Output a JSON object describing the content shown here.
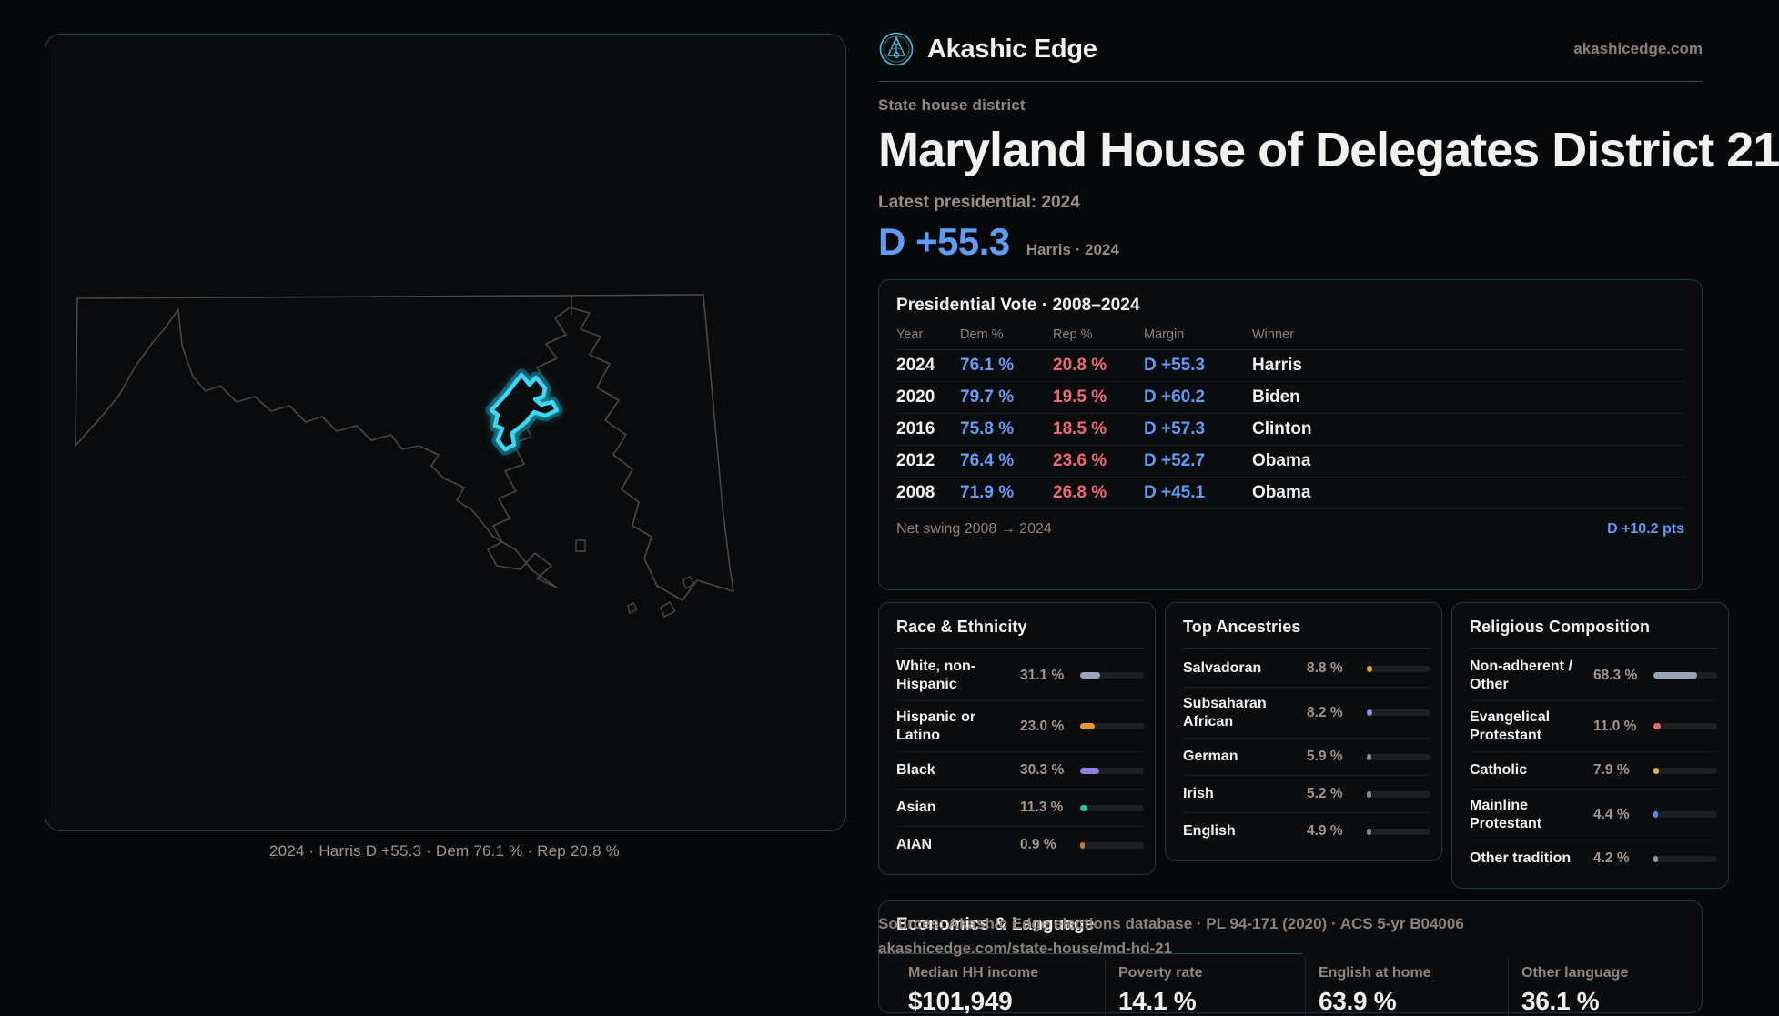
{
  "brand": {
    "name": "Akashic Edge",
    "domain": "akashicedge.com",
    "logo_icon": "akashic-edge-logo"
  },
  "header": {
    "kicker": "State house district",
    "title": "Maryland House of Delegates District 21",
    "latest_label": "Latest presidential: 2024",
    "headline_margin": "D +55.3",
    "headline_context": "Harris · 2024"
  },
  "map": {
    "caption": "2024 · Harris D +55.3 · Dem 76.1 % · Rep 20.8 %",
    "highlight_color": "#3bd8f6"
  },
  "presidential_table": {
    "title": "Presidential Vote · 2008–2024",
    "columns": [
      "Year",
      "Dem %",
      "Rep %",
      "Margin",
      "Winner"
    ],
    "rows": [
      {
        "year": "2024",
        "dem": "76.1 %",
        "rep": "20.8 %",
        "margin": "D +55.3",
        "winner": "Harris"
      },
      {
        "year": "2020",
        "dem": "79.7 %",
        "rep": "19.5 %",
        "margin": "D +60.2",
        "winner": "Biden"
      },
      {
        "year": "2016",
        "dem": "75.8 %",
        "rep": "18.5 %",
        "margin": "D +57.3",
        "winner": "Clinton"
      },
      {
        "year": "2012",
        "dem": "76.4 %",
        "rep": "23.6 %",
        "margin": "D +52.7",
        "winner": "Obama"
      },
      {
        "year": "2008",
        "dem": "71.9 %",
        "rep": "26.8 %",
        "margin": "D +45.1",
        "winner": "Obama"
      }
    ],
    "net_swing_label": "Net swing 2008 → 2024",
    "net_swing_value": "D +10.2 pts"
  },
  "panels": [
    {
      "title": "Race & Ethnicity",
      "rows": [
        {
          "label": "White, non-Hispanic",
          "value": "31.1 %",
          "pct": 31.1,
          "color": "#97a6bd"
        },
        {
          "label": "Hispanic or Latino",
          "value": "23.0 %",
          "pct": 23.0,
          "color": "#e3982e"
        },
        {
          "label": "Black",
          "value": "30.3 %",
          "pct": 30.3,
          "color": "#9181e6"
        },
        {
          "label": "Asian",
          "value": "11.3 %",
          "pct": 11.3,
          "color": "#2fc493"
        },
        {
          "label": "AIAN",
          "value": "0.9 %",
          "pct": 0.9,
          "color": "#c07a35"
        }
      ]
    },
    {
      "title": "Top Ancestries",
      "rows": [
        {
          "label": "Salvadoran",
          "value": "8.8 %",
          "pct": 8.8,
          "color": "#e0a435"
        },
        {
          "label": "Subsaharan African",
          "value": "8.2 %",
          "pct": 8.2,
          "color": "#9087e8"
        },
        {
          "label": "German",
          "value": "5.9 %",
          "pct": 5.9,
          "color": "#7f8da3"
        },
        {
          "label": "Irish",
          "value": "5.2 %",
          "pct": 5.2,
          "color": "#7f8da3"
        },
        {
          "label": "English",
          "value": "4.9 %",
          "pct": 4.9,
          "color": "#7f8da3"
        }
      ]
    },
    {
      "title": "Religious Composition",
      "rows": [
        {
          "label": "Non-adherent / Other",
          "value": "68.3 %",
          "pct": 68.3,
          "color": "#97a3b8"
        },
        {
          "label": "Evangelical Protestant",
          "value": "11.0 %",
          "pct": 11.0,
          "color": "#e06b70"
        },
        {
          "label": "Catholic",
          "value": "7.9 %",
          "pct": 7.9,
          "color": "#e3b23a"
        },
        {
          "label": "Mainline Protestant",
          "value": "4.4 %",
          "pct": 4.4,
          "color": "#4f8df2"
        },
        {
          "label": "Other tradition",
          "value": "4.2 %",
          "pct": 4.2,
          "color": "#9094a0"
        }
      ]
    }
  ],
  "economics": {
    "title": "Economics & Language",
    "stats": [
      {
        "label": "Median HH income",
        "value": "$101,949"
      },
      {
        "label": "Poverty rate",
        "value": "14.1 %"
      },
      {
        "label": "English at home",
        "value": "63.9 %"
      },
      {
        "label": "Other language",
        "value": "36.1 %"
      }
    ]
  },
  "footer": {
    "line1": "Sources: Akashic Edge elections database · PL 94-171 (2020) · ACS 5-yr B04006",
    "line2": "akashicedge.com/state-house/md-hd-21"
  },
  "colors": {
    "accent_teal": "#3bd8f6",
    "dem_blue": "#5f9cf8",
    "rep_red": "#f0696f"
  }
}
